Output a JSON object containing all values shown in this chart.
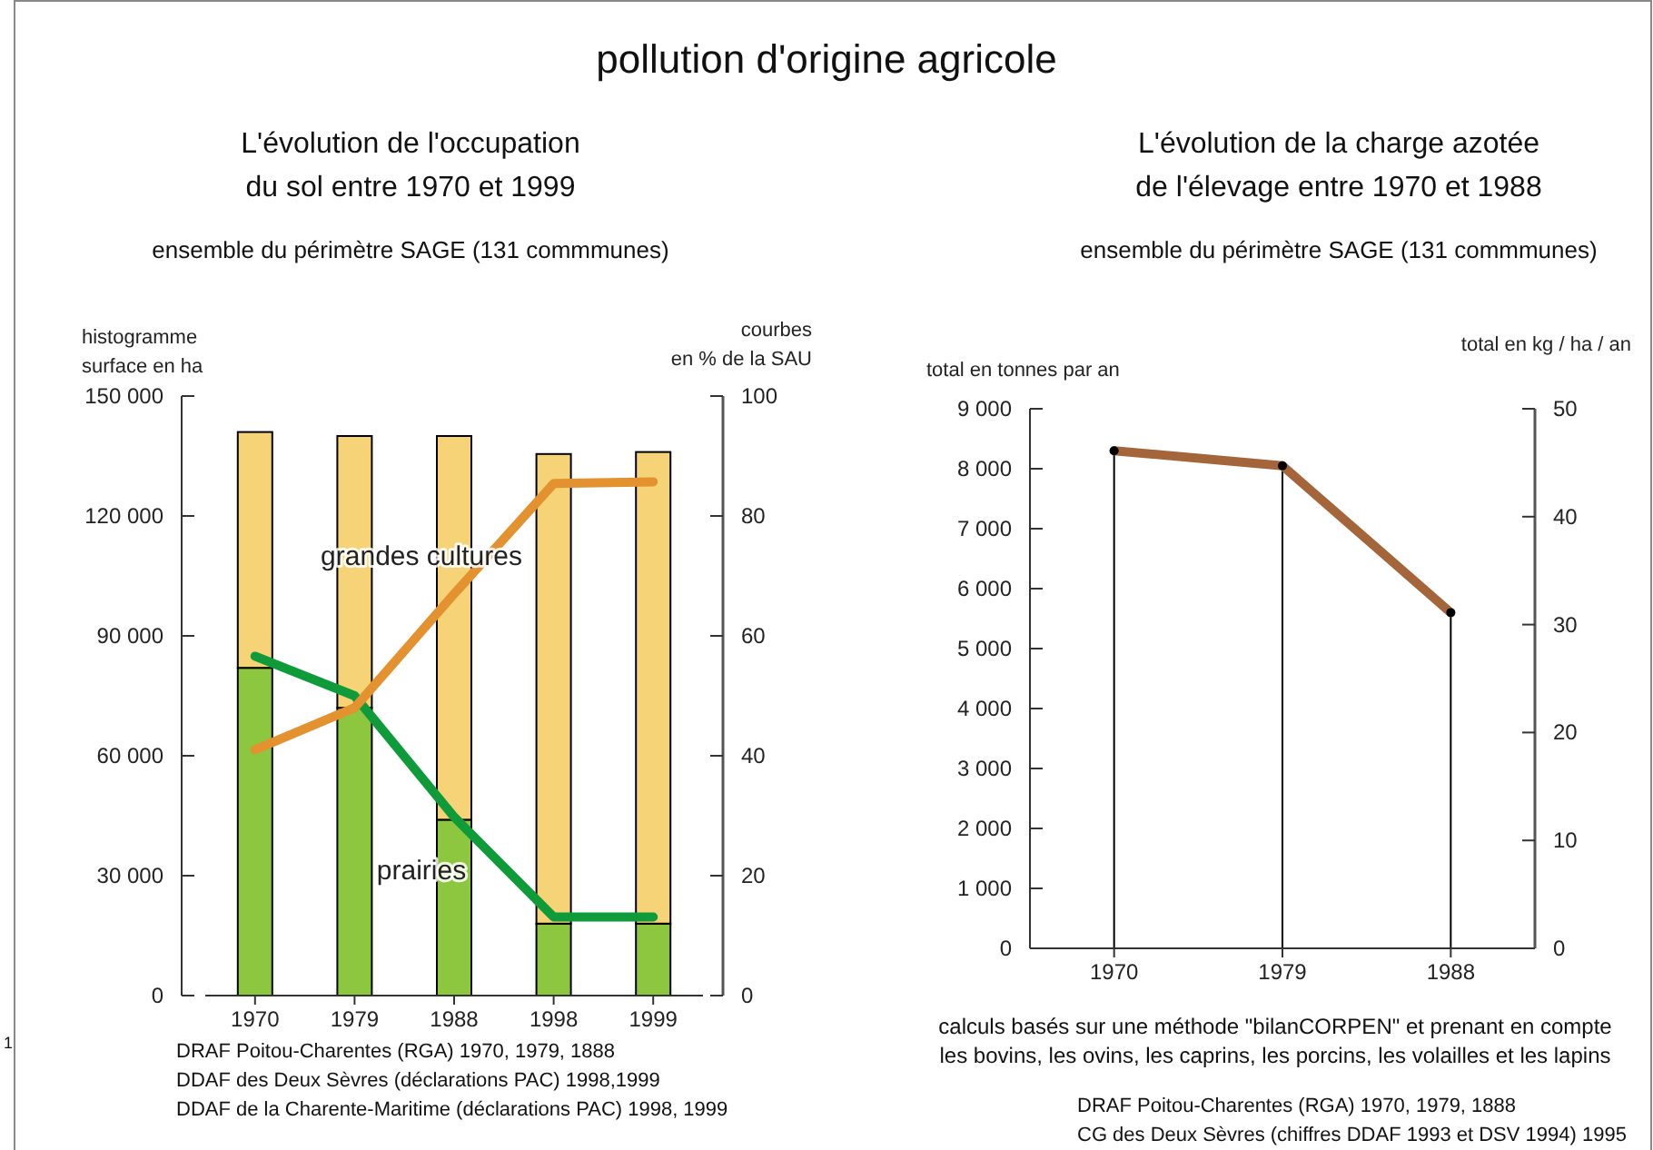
{
  "chart_data": [
    {
      "type": "bar",
      "title": "pollution d'origine agricole",
      "subtitle": "L'évolution de l'occupation du sol entre 1970 et 1999",
      "ylabel": "histogramme surface en ha",
      "y2label": "courbes en % de la SAU",
      "stacked": true,
      "categories": [
        "1970",
        "1979",
        "1988",
        "1998",
        "1999"
      ],
      "series": [
        {
          "name": "prairies",
          "color": "#8dc63f",
          "values": [
            82000,
            72000,
            44000,
            18000,
            18000
          ]
        },
        {
          "name": "grandes cultures",
          "color": "#f5d376",
          "values": [
            59000,
            68000,
            96000,
            117500,
            118000
          ]
        },
        {
          "type": "line",
          "axis": "y2",
          "color": "#0f9b3a",
          "values": [
            56.6,
            50,
            29.8,
            13.1,
            13.1
          ]
        },
        {
          "type": "line",
          "axis": "y2",
          "color": "#e4912f",
          "values": [
            41,
            48,
            67,
            85.4,
            85.7
          ]
        }
      ],
      "ylim": [
        0,
        150000
      ],
      "yticks": [
        0,
        {
          "value": 30000,
          "label": "30 000"
        },
        {
          "value": 60000,
          "label": "60 000"
        },
        {
          "value": 90000,
          "label": "90 000"
        },
        {
          "value": 120000,
          "label": "120 000"
        },
        {
          "value": 150000,
          "label": "150 000"
        }
      ],
      "y2lim": [
        0,
        100
      ],
      "y2ticks": [
        0,
        20,
        40,
        60,
        80,
        100
      ],
      "annotations": [
        "ensemble du périmètre SAGE (131 commmunes)",
        "DRAF Poitou-Charentes (RGA) 1970, 1979, 1888",
        "DDAF des Deux Sèvres (déclarations PAC) 1998,1999",
        "DDAF de la Charente-Maritime (déclarations PAC) 1998, 1999",
        "1"
      ]
    },
    {
      "type": "line",
      "title": "L'évolution de la charge azotée de l'élevage entre 1970 et 1988",
      "subtitle": "ensemble du périmètre SAGE (131 commmunes)",
      "ylabel": "total en tonnes par an",
      "y2label": "total en kg / ha / an",
      "categories": [
        "1970",
        "1979",
        "1988"
      ],
      "series": [
        {
          "type": "lollipop",
          "color": "#000000",
          "values": [
            8300,
            8050,
            5600
          ]
        },
        {
          "color": "#a5653a",
          "values": [
            8300,
            8050,
            5600
          ]
        }
      ],
      "ylim": [
        0,
        9000
      ],
      "yticks": [
        0,
        {
          "value": 1000,
          "label": "1 000"
        },
        {
          "value": 2000,
          "label": "2 000"
        },
        {
          "value": 3000,
          "label": "3 000"
        },
        {
          "value": 4000,
          "label": "4 000"
        },
        {
          "value": 5000,
          "label": "5 000"
        },
        {
          "value": 6000,
          "label": "6 000"
        },
        {
          "value": 7000,
          "label": "7 000"
        },
        {
          "value": 8000,
          "label": "8 000"
        },
        {
          "value": 9000,
          "label": "9 000"
        }
      ],
      "y2lim": [
        0,
        50
      ],
      "y2ticks": [
        0,
        10,
        20,
        30,
        40,
        50
      ],
      "annotations": [
        "calculs basés sur une méthode  \"bilanCORPEN\" et prenant en compte",
        "les bovins, les ovins, les caprins, les porcins, les volailles et les lapins",
        "DRAF Poitou-Charentes (RGA) 1970, 1979, 1888",
        "CG des Deux Sèvres (chiffres DDAF 1993 et DSV 1994) 1995"
      ]
    }
  ]
}
